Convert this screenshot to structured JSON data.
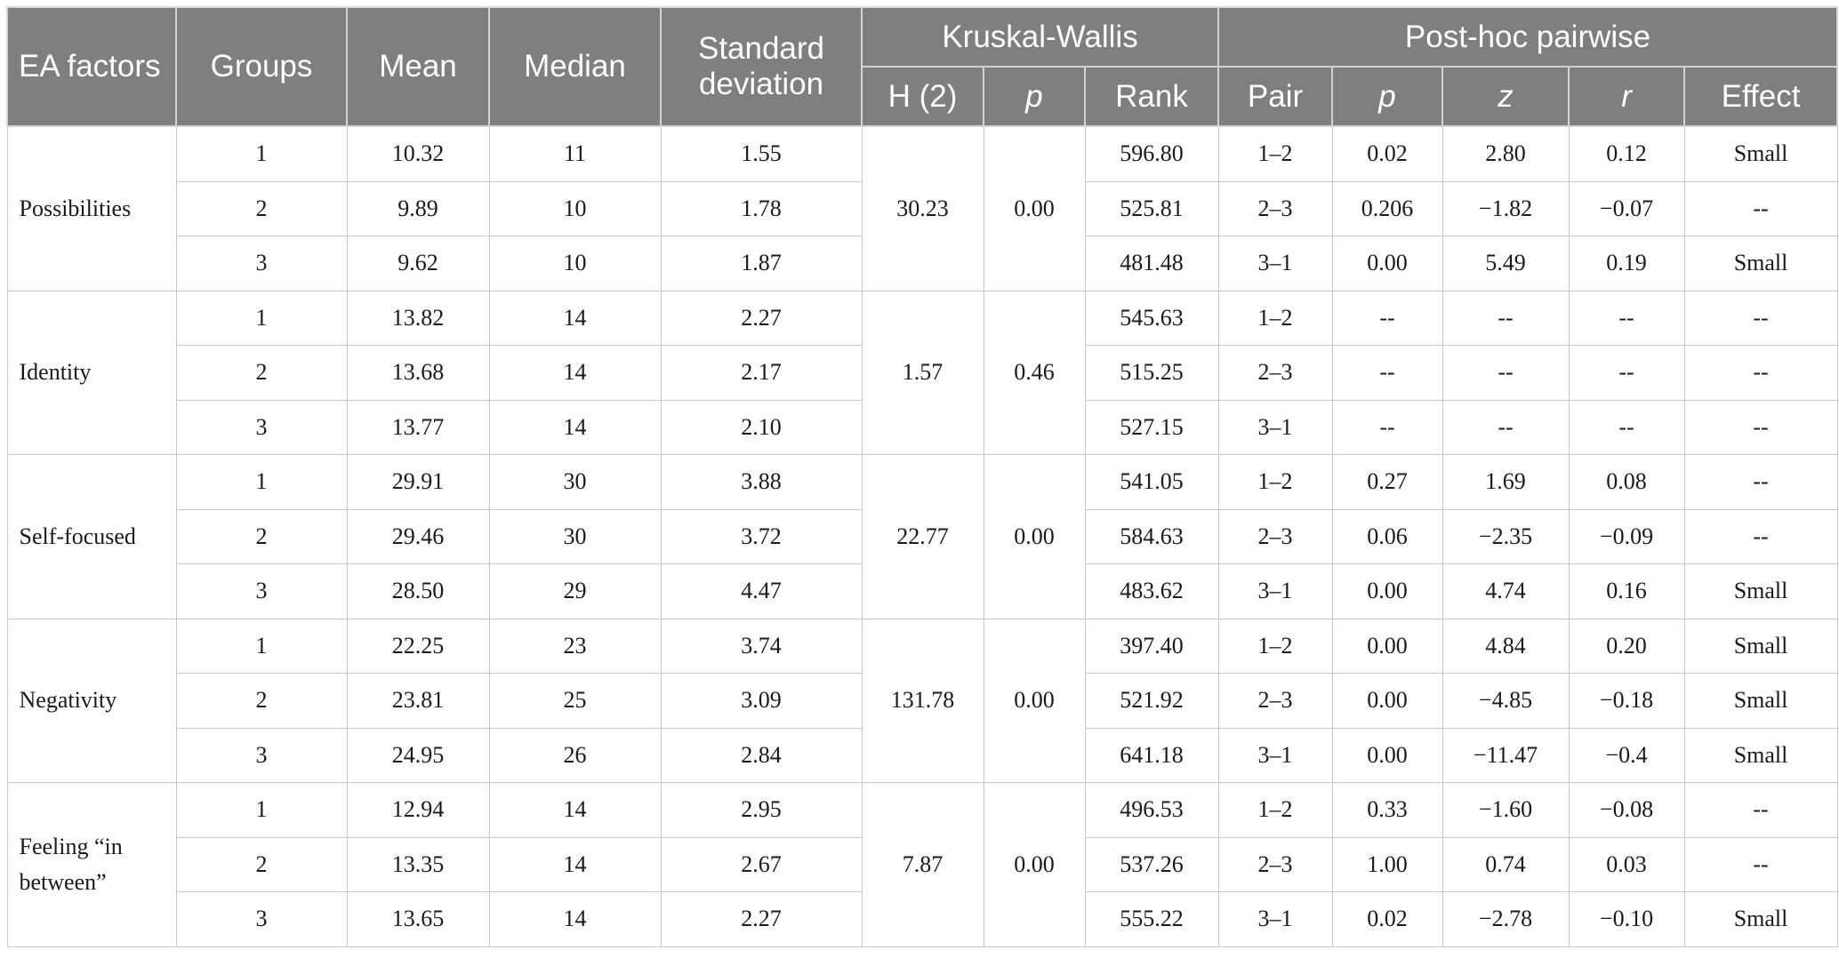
{
  "header": {
    "ea_factors": "EA factors",
    "groups": "Groups",
    "mean": "Mean",
    "median": "Median",
    "sd": "Standard deviation",
    "kruskal_wallis": "Kruskal-Wallis",
    "post_hoc": "Post-hoc pairwise",
    "h2": "H (2)",
    "p": "p",
    "rank": "Rank",
    "pair": "Pair",
    "p2": "p",
    "z": "z",
    "r": "r",
    "effect": "Effect"
  },
  "factors": [
    {
      "name": "Possibilities",
      "h": "30.23",
      "p": "0.00",
      "rows": [
        {
          "group": "1",
          "mean": "10.32",
          "median": "11",
          "sd": "1.55",
          "rank": "596.80",
          "pair": "1–2",
          "pp": "0.02",
          "z": "2.80",
          "r": "0.12",
          "effect": "Small"
        },
        {
          "group": "2",
          "mean": "9.89",
          "median": "10",
          "sd": "1.78",
          "rank": "525.81",
          "pair": "2–3",
          "pp": "0.206",
          "z": "−1.82",
          "r": "−0.07",
          "effect": "--"
        },
        {
          "group": "3",
          "mean": "9.62",
          "median": "10",
          "sd": "1.87",
          "rank": "481.48",
          "pair": "3–1",
          "pp": "0.00",
          "z": "5.49",
          "r": "0.19",
          "effect": "Small"
        }
      ]
    },
    {
      "name": "Identity",
      "h": "1.57",
      "p": "0.46",
      "rows": [
        {
          "group": "1",
          "mean": "13.82",
          "median": "14",
          "sd": "2.27",
          "rank": "545.63",
          "pair": "1–2",
          "pp": "--",
          "z": "--",
          "r": "--",
          "effect": "--"
        },
        {
          "group": "2",
          "mean": "13.68",
          "median": "14",
          "sd": "2.17",
          "rank": "515.25",
          "pair": "2–3",
          "pp": "--",
          "z": "--",
          "r": "--",
          "effect": "--"
        },
        {
          "group": "3",
          "mean": "13.77",
          "median": "14",
          "sd": "2.10",
          "rank": "527.15",
          "pair": "3–1",
          "pp": "--",
          "z": "--",
          "r": "--",
          "effect": "--"
        }
      ]
    },
    {
      "name": "Self-focused",
      "h": "22.77",
      "p": "0.00",
      "rows": [
        {
          "group": "1",
          "mean": "29.91",
          "median": "30",
          "sd": "3.88",
          "rank": "541.05",
          "pair": "1–2",
          "pp": "0.27",
          "z": "1.69",
          "r": "0.08",
          "effect": "--"
        },
        {
          "group": "2",
          "mean": "29.46",
          "median": "30",
          "sd": "3.72",
          "rank": "584.63",
          "pair": "2–3",
          "pp": "0.06",
          "z": "−2.35",
          "r": "−0.09",
          "effect": "--"
        },
        {
          "group": "3",
          "mean": "28.50",
          "median": "29",
          "sd": "4.47",
          "rank": "483.62",
          "pair": "3–1",
          "pp": "0.00",
          "z": "4.74",
          "r": "0.16",
          "effect": "Small"
        }
      ]
    },
    {
      "name": "Negativity",
      "h": "131.78",
      "p": "0.00",
      "rows": [
        {
          "group": "1",
          "mean": "22.25",
          "median": "23",
          "sd": "3.74",
          "rank": "397.40",
          "pair": "1–2",
          "pp": "0.00",
          "z": "4.84",
          "r": "0.20",
          "effect": "Small"
        },
        {
          "group": "2",
          "mean": "23.81",
          "median": "25",
          "sd": "3.09",
          "rank": "521.92",
          "pair": "2–3",
          "pp": "0.00",
          "z": "−4.85",
          "r": "−0.18",
          "effect": "Small"
        },
        {
          "group": "3",
          "mean": "24.95",
          "median": "26",
          "sd": "2.84",
          "rank": "641.18",
          "pair": "3–1",
          "pp": "0.00",
          "z": "−11.47",
          "r": "−0.4",
          "effect": "Small"
        }
      ]
    },
    {
      "name": "Feeling “in between”",
      "h": "7.87",
      "p": "0.00",
      "rows": [
        {
          "group": "1",
          "mean": "12.94",
          "median": "14",
          "sd": "2.95",
          "rank": "496.53",
          "pair": "1–2",
          "pp": "0.33",
          "z": "−1.60",
          "r": "−0.08",
          "effect": "--"
        },
        {
          "group": "2",
          "mean": "13.35",
          "median": "14",
          "sd": "2.67",
          "rank": "537.26",
          "pair": "2–3",
          "pp": "1.00",
          "z": "0.74",
          "r": "0.03",
          "effect": "--"
        },
        {
          "group": "3",
          "mean": "13.65",
          "median": "14",
          "sd": "2.27",
          "rank": "555.22",
          "pair": "3–1",
          "pp": "0.02",
          "z": "−2.78",
          "r": "−0.10",
          "effect": "Small"
        }
      ]
    }
  ]
}
